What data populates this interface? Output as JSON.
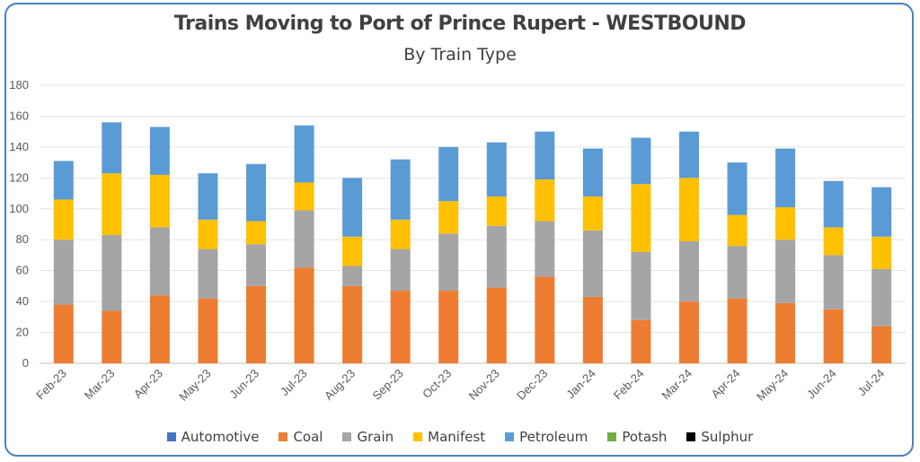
{
  "colors": {
    "Automotive": "#4472c4",
    "Coal": "#ed7d31",
    "Grain": "#a5a5a5",
    "Manifest": "#ffc000",
    "Petroleum": "#5b9bd5",
    "Potash": "#70ad47",
    "Sulphur": "#000000"
  },
  "chart_data": {
    "type": "bar",
    "stacked": true,
    "title": "Trains Moving to Port of Prince Rupert - WESTBOUND",
    "subtitle": "By Train Type",
    "xlabel": "",
    "ylabel": "",
    "ylim": [
      0,
      180
    ],
    "yticks": [
      0,
      20,
      40,
      60,
      80,
      100,
      120,
      140,
      160,
      180
    ],
    "grid": true,
    "legend_position": "bottom",
    "categories": [
      "Feb-23",
      "Mar-23",
      "Apr-23",
      "May-23",
      "Jun-23",
      "Jul-23",
      "Aug-23",
      "Sep-23",
      "Oct-23",
      "Nov-23",
      "Dec-23",
      "Jan-24",
      "Feb-24",
      "Mar-24",
      "Apr-24",
      "May-24",
      "Jun-24",
      "Jul-24"
    ],
    "series": [
      {
        "name": "Automotive",
        "values": [
          0,
          0,
          0,
          0,
          0,
          0,
          0,
          0,
          0,
          0,
          0,
          0,
          0,
          0,
          0,
          0,
          0,
          0
        ]
      },
      {
        "name": "Coal",
        "values": [
          38,
          34,
          44,
          42,
          50,
          62,
          50,
          47,
          47,
          49,
          56,
          43,
          28,
          40,
          42,
          39,
          35,
          24
        ]
      },
      {
        "name": "Grain",
        "values": [
          42,
          49,
          44,
          32,
          27,
          37,
          13,
          27,
          37,
          40,
          36,
          43,
          44,
          39,
          34,
          41,
          35,
          37
        ]
      },
      {
        "name": "Manifest",
        "values": [
          26,
          40,
          34,
          19,
          15,
          18,
          19,
          19,
          21,
          19,
          27,
          22,
          44,
          41,
          20,
          21,
          18,
          21
        ]
      },
      {
        "name": "Petroleum",
        "values": [
          25,
          33,
          31,
          30,
          37,
          37,
          38,
          39,
          35,
          35,
          31,
          31,
          30,
          30,
          34,
          38,
          30,
          32
        ]
      },
      {
        "name": "Potash",
        "values": [
          0,
          0,
          0,
          0,
          0,
          0,
          0,
          0,
          0,
          0,
          0,
          0,
          0,
          0,
          0,
          0,
          0,
          0
        ]
      },
      {
        "name": "Sulphur",
        "values": [
          0,
          0,
          0,
          0,
          0,
          0,
          0,
          0,
          0,
          0,
          0,
          0,
          0,
          0,
          0,
          0,
          0,
          0
        ]
      }
    ]
  }
}
